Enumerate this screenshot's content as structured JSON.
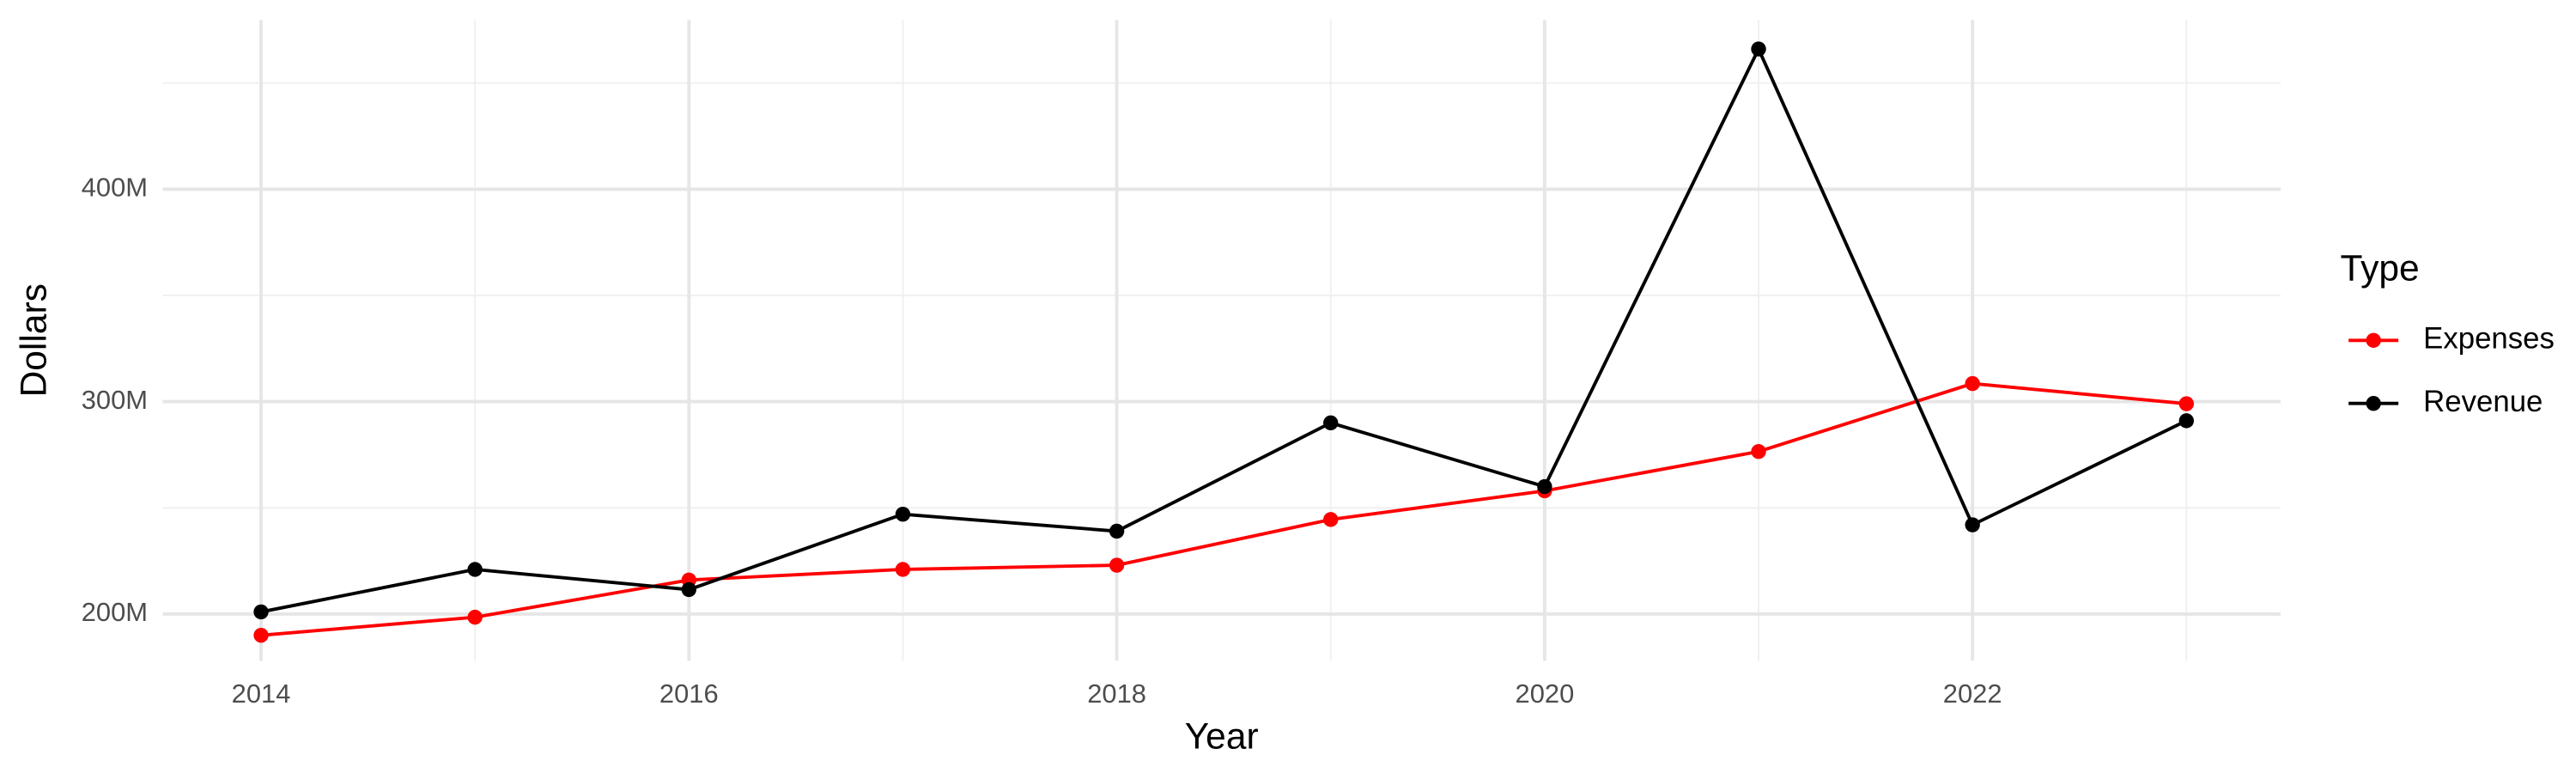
{
  "chart_data": {
    "type": "line",
    "x_label": "Year",
    "y_label": "Dollars",
    "legend_title": "Type",
    "legend_position": "right",
    "x": [
      2014,
      2015,
      2016,
      2017,
      2018,
      2019,
      2020,
      2021,
      2022,
      2023
    ],
    "series": [
      {
        "name": "Expenses",
        "color": "#ff0000",
        "values": [
          190000000,
          198500000,
          216000000,
          221000000,
          223000000,
          244500000,
          258000000,
          276500000,
          308500000,
          299000000
        ]
      },
      {
        "name": "Revenue",
        "color": "#000000",
        "values": [
          201000000,
          221000000,
          211500000,
          247000000,
          239000000,
          290000000,
          260000000,
          466000000,
          242000000,
          291000000
        ]
      }
    ],
    "xlim": [
      2013.54,
      2023.44
    ],
    "ylim": [
      178000000,
      479700000
    ],
    "xticks": [
      2014,
      2016,
      2018,
      2020,
      2022
    ],
    "x_minor_grid": [
      2015,
      2017,
      2019,
      2021,
      2023
    ],
    "yticks": [
      {
        "value": 200000000,
        "label": "200M"
      },
      {
        "value": 300000000,
        "label": "300M"
      },
      {
        "value": 400000000,
        "label": "400M"
      }
    ],
    "y_minor_grid": [
      250000000,
      350000000,
      450000000
    ],
    "grid": true
  }
}
